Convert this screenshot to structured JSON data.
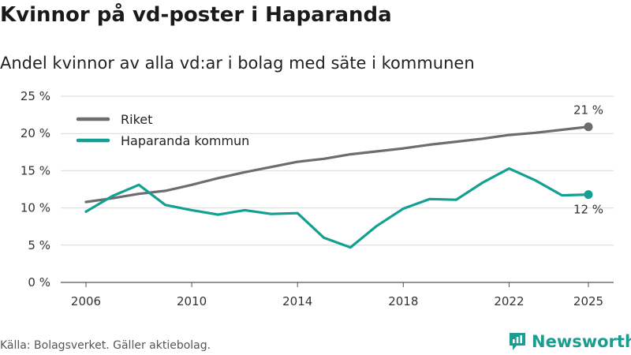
{
  "title": "Kvinnor på vd-poster i Haparanda",
  "subtitle": "Andel kvinnor av alla vd:ar i bolag med säte i kommunen",
  "source": "Källa: Bolagsverket. Gäller aktiebolag.",
  "brand": {
    "name": "Newsworthy",
    "icon": "newsworthy-logo-icon",
    "color": "#1a9e8f"
  },
  "chart_data": {
    "type": "line",
    "title": "Kvinnor på vd-poster i Haparanda",
    "xlabel": "",
    "ylabel": "",
    "x": [
      2006,
      2007,
      2008,
      2009,
      2010,
      2011,
      2012,
      2013,
      2014,
      2015,
      2016,
      2017,
      2018,
      2019,
      2020,
      2021,
      2022,
      2023,
      2024,
      2025
    ],
    "xlim": [
      2006,
      2025
    ],
    "ylim": [
      0,
      25
    ],
    "x_ticks": [
      2006,
      2010,
      2014,
      2018,
      2022,
      2025
    ],
    "x_tick_labels": [
      "2006",
      "2010",
      "2014",
      "2018",
      "2022",
      "2025"
    ],
    "y_ticks": [
      0,
      5,
      10,
      15,
      20,
      25
    ],
    "y_tick_labels": [
      "0 %",
      "5 %",
      "10 %",
      "15 %",
      "20 %",
      "25 %"
    ],
    "grid": true,
    "legend": "top-left",
    "series": [
      {
        "name": "Riket",
        "color": "#6d6d70",
        "values": [
          10.8,
          11.3,
          11.9,
          12.3,
          13.1,
          14.0,
          14.8,
          15.5,
          16.2,
          16.6,
          17.2,
          17.6,
          18.0,
          18.5,
          18.9,
          19.3,
          19.8,
          20.1,
          20.5,
          20.9
        ],
        "end_label": "21 %"
      },
      {
        "name": "Haparanda kommun",
        "color": "#13a093",
        "values": [
          9.5,
          11.6,
          13.1,
          10.4,
          9.7,
          9.1,
          9.7,
          9.2,
          9.3,
          6.0,
          4.7,
          7.6,
          9.9,
          11.2,
          11.1,
          13.4,
          15.3,
          13.7,
          11.7,
          11.8
        ],
        "end_label": "12 %"
      }
    ]
  }
}
